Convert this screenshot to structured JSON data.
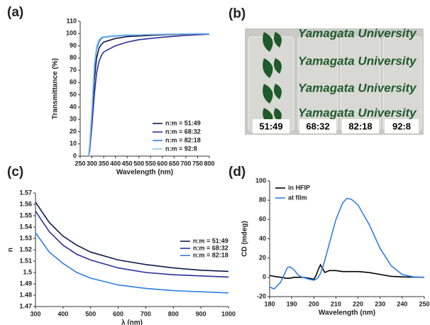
{
  "chart_data": [
    {
      "type": "line",
      "panel": "(a)",
      "xlabel": "Wavelength (nm)",
      "ylabel": "Transmittance (%)",
      "x": [
        285,
        290,
        300,
        310,
        320,
        330,
        340,
        350,
        400,
        450,
        500,
        600,
        700,
        800
      ],
      "series": [
        {
          "name": "n:m = 51:49",
          "color": "#0d1b4a",
          "values": [
            0,
            5,
            30,
            62,
            80,
            88,
            91,
            93,
            96,
            97.5,
            98,
            99,
            99.5,
            100
          ]
        },
        {
          "name": "n:m = 68:32",
          "color": "#2a2f9a",
          "values": [
            0,
            4,
            25,
            50,
            68,
            77,
            82,
            85,
            90,
            93,
            95,
            97,
            98.5,
            99.5
          ]
        },
        {
          "name": "n:m = 82:18",
          "color": "#2f7fe0",
          "values": [
            0,
            8,
            35,
            70,
            87,
            93,
            96,
            97,
            98,
            98.5,
            99,
            99.5,
            99.8,
            100
          ]
        },
        {
          "name": "n:m = 92:8",
          "color": "#8fc8f0",
          "values": [
            0,
            10,
            40,
            75,
            90,
            95,
            97,
            97.5,
            98.5,
            99,
            99,
            99.5,
            99.8,
            100
          ]
        }
      ],
      "xlim": [
        250,
        800
      ],
      "xticks": [
        250,
        300,
        350,
        400,
        450,
        500,
        550,
        600,
        650,
        700,
        750,
        800
      ],
      "ylim": [
        0,
        110
      ],
      "yticks": [
        0,
        10,
        20,
        30,
        40,
        50,
        60,
        70,
        80,
        90,
        100,
        110
      ],
      "legend": "lower right"
    },
    {
      "type": "line",
      "panel": "(c)",
      "xlabel": "λ (nm)",
      "ylabel": "n",
      "x": [
        300,
        350,
        400,
        450,
        500,
        600,
        700,
        800,
        900,
        1000
      ],
      "series": [
        {
          "name": "n:m = 51:49",
          "color": "#0d1b4a",
          "values": [
            1.562,
            1.544,
            1.532,
            1.524,
            1.518,
            1.511,
            1.507,
            1.504,
            1.502,
            1.501
          ]
        },
        {
          "name": "n:m = 68:32",
          "color": "#2a2f9a",
          "values": [
            1.554,
            1.536,
            1.524,
            1.516,
            1.511,
            1.504,
            1.5,
            1.498,
            1.497,
            1.496
          ]
        },
        {
          "name": "n:m = 82:18",
          "color": "#2f7fe0",
          "values": [
            1.535,
            1.518,
            1.508,
            1.5,
            1.495,
            1.489,
            1.486,
            1.484,
            1.483,
            1.482
          ]
        }
      ],
      "xlim": [
        300,
        1000
      ],
      "xticks": [
        300,
        400,
        500,
        600,
        700,
        800,
        900,
        1000
      ],
      "ylim": [
        1.47,
        1.57
      ],
      "yticks": [
        1.47,
        1.48,
        1.49,
        1.5,
        1.51,
        1.52,
        1.53,
        1.54,
        1.55,
        1.56,
        1.57
      ],
      "legend": "right"
    },
    {
      "type": "line",
      "panel": "(d)",
      "xlabel": "Wavelength (nm)",
      "ylabel": "CD (mdeg)",
      "x": [
        180,
        182,
        185,
        188,
        189,
        191,
        193,
        195,
        198,
        200,
        201,
        202,
        203,
        204,
        205,
        207,
        210,
        213,
        215,
        217,
        220,
        225,
        230,
        235,
        240,
        245,
        250
      ],
      "series": [
        {
          "name": "in HFIP",
          "color": "#000000",
          "values": [
            2,
            1,
            0,
            -1,
            -1,
            0,
            0,
            0,
            -1,
            -2,
            2,
            8,
            13,
            9,
            5,
            7,
            7,
            6,
            6,
            6,
            6,
            5,
            3,
            1,
            0.5,
            0.2,
            0
          ]
        },
        {
          "name": "at film",
          "color": "#2f7fe0",
          "values": [
            -10,
            -12,
            -5,
            10,
            11,
            8,
            2,
            0,
            -2,
            -3,
            -2,
            0,
            4,
            10,
            18,
            35,
            60,
            77,
            82,
            81,
            75,
            55,
            30,
            12,
            3,
            0.5,
            0
          ]
        }
      ],
      "xlim": [
        180,
        250
      ],
      "xticks": [
        180,
        190,
        200,
        210,
        220,
        230,
        240,
        250
      ],
      "ylim": [
        -20,
        100
      ],
      "yticks": [
        -20,
        0,
        20,
        40,
        60,
        80,
        100
      ],
      "legend": "upper left"
    }
  ],
  "photo": {
    "panel": "(b)",
    "watermark": "Yamagata University",
    "labels": [
      "51:49",
      "68:32",
      "82:18",
      "92:8"
    ]
  }
}
